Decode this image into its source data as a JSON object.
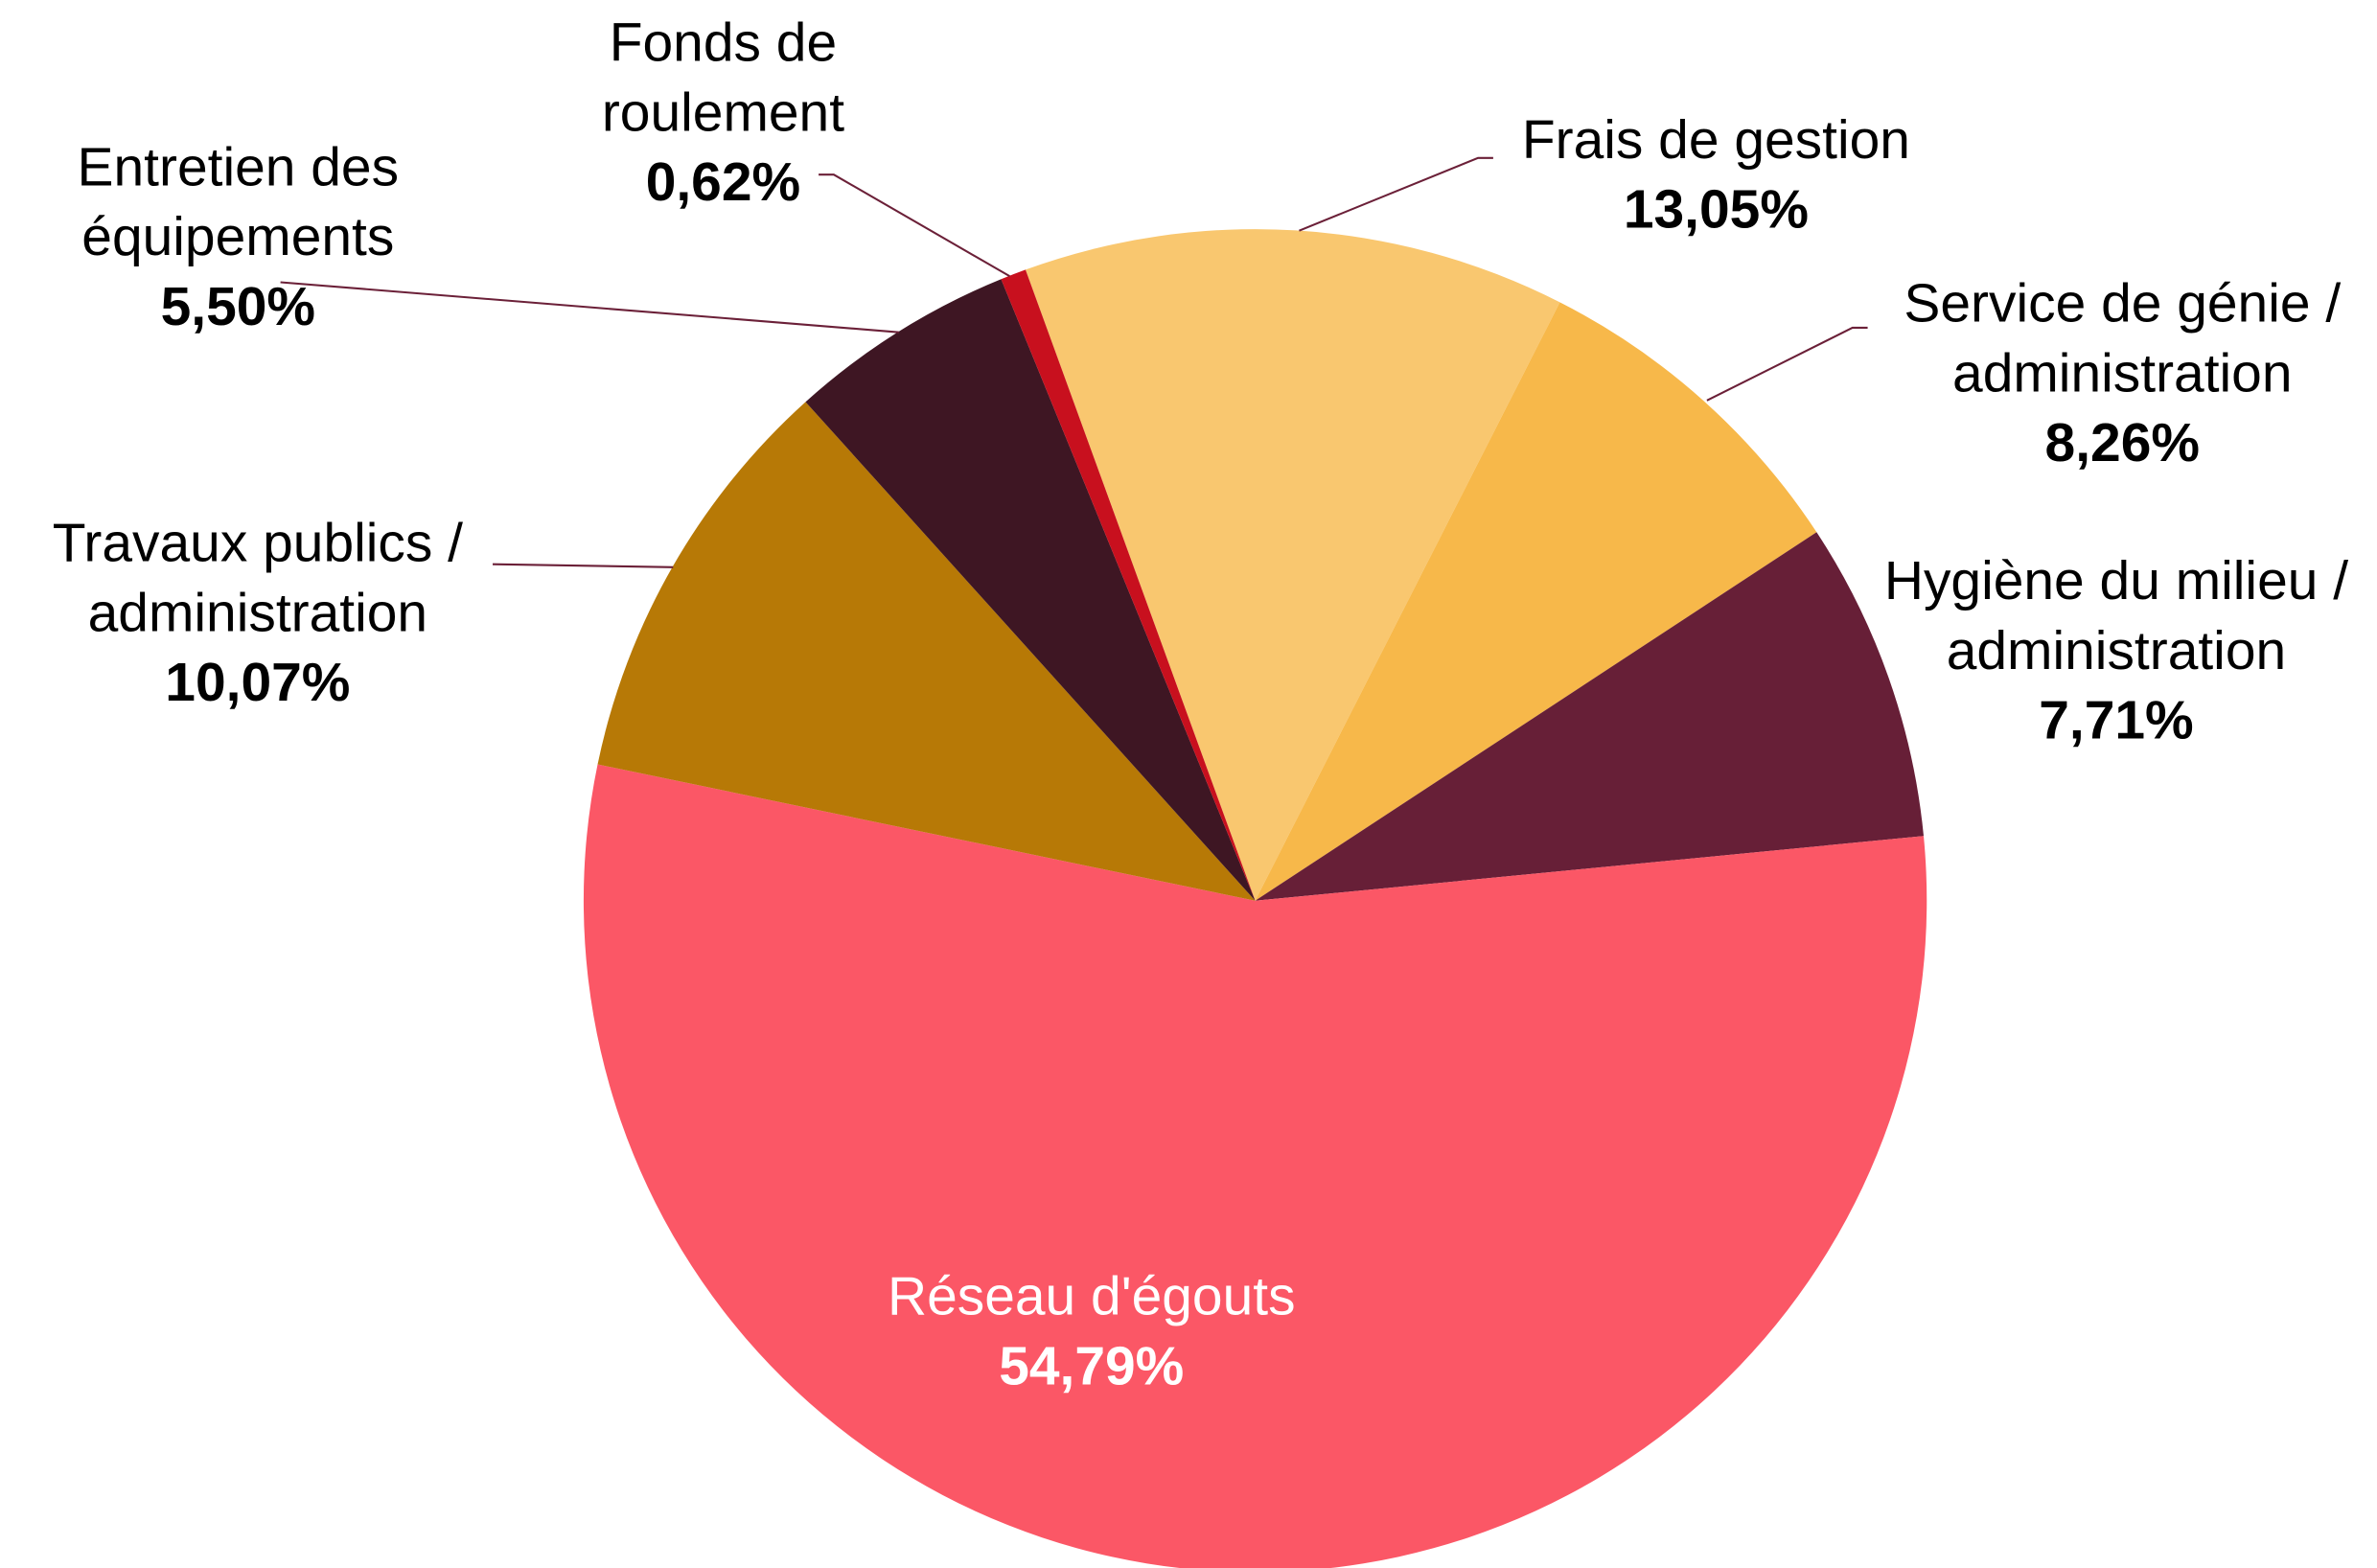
{
  "chart_data": {
    "type": "pie",
    "categories": [
      "Frais de gestion",
      "Service de génie / administration",
      "Hygiène du milieu / administration",
      "Réseau d'égouts",
      "Travaux publics / administration",
      "Entretien des équipements",
      "Fonds de roulement"
    ],
    "values": [
      13.05,
      8.26,
      7.71,
      54.79,
      10.07,
      5.5,
      0.62
    ],
    "value_labels": [
      "13,05%",
      "8,26%",
      "7,71%",
      "54,79%",
      "10,07%",
      "5,50%",
      "0,62%"
    ],
    "colors": [
      "#f9c76f",
      "#f7b84a",
      "#671f37",
      "#fb5766",
      "#b77906",
      "#3e1623",
      "#c8101e"
    ]
  }
}
